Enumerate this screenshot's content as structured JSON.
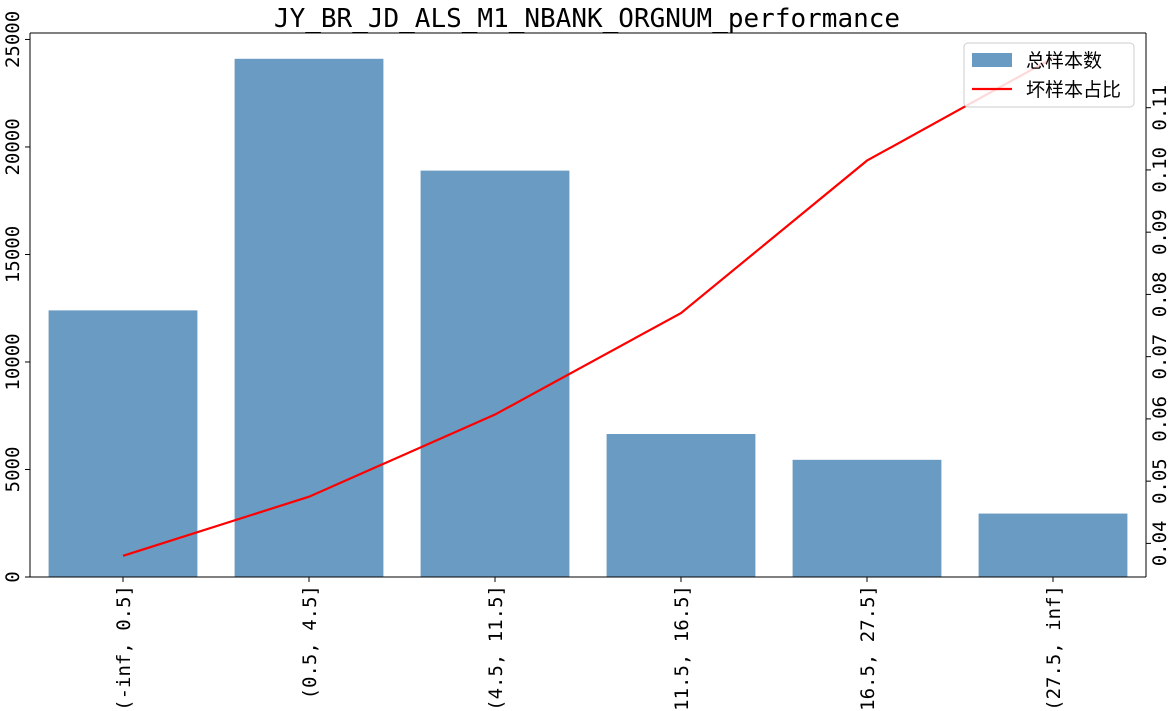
{
  "chart_data": {
    "type": "bar",
    "title": "JY_BR_JD_ALS_M1_NBANK_ORGNUM_performance",
    "xlabel": "",
    "ylabel": "",
    "y2label": "",
    "categories": [
      "(-inf, 0.5]",
      "(0.5, 4.5]",
      "(4.5, 11.5]",
      "(11.5, 16.5]",
      "(16.5, 27.5]",
      "(27.5, inf]"
    ],
    "series": [
      {
        "name": "总样本数",
        "type": "bar",
        "axis": "left",
        "color": "#6a9bc3",
        "values": [
          12400,
          24100,
          18900,
          6650,
          5450,
          2950
        ]
      },
      {
        "name": "坏样本占比",
        "type": "line",
        "axis": "right",
        "color": "#ff0000",
        "values": [
          0.038,
          0.0475,
          0.0607,
          0.077,
          0.1015,
          0.118
        ]
      }
    ],
    "ylim": [
      0,
      25300
    ],
    "y2lim": [
      0.0346,
      0.122
    ],
    "yticks": [
      0,
      5000,
      10000,
      15000,
      20000,
      25000
    ],
    "y2ticks": [
      0.04,
      0.05,
      0.06,
      0.07,
      0.08,
      0.09,
      0.1,
      0.11
    ],
    "y2tick_labels": [
      "0.04",
      "0.05",
      "0.06",
      "0.07",
      "0.08",
      "0.09",
      "0.10",
      "0.11"
    ],
    "grid": false,
    "legend_position": "top-right"
  }
}
